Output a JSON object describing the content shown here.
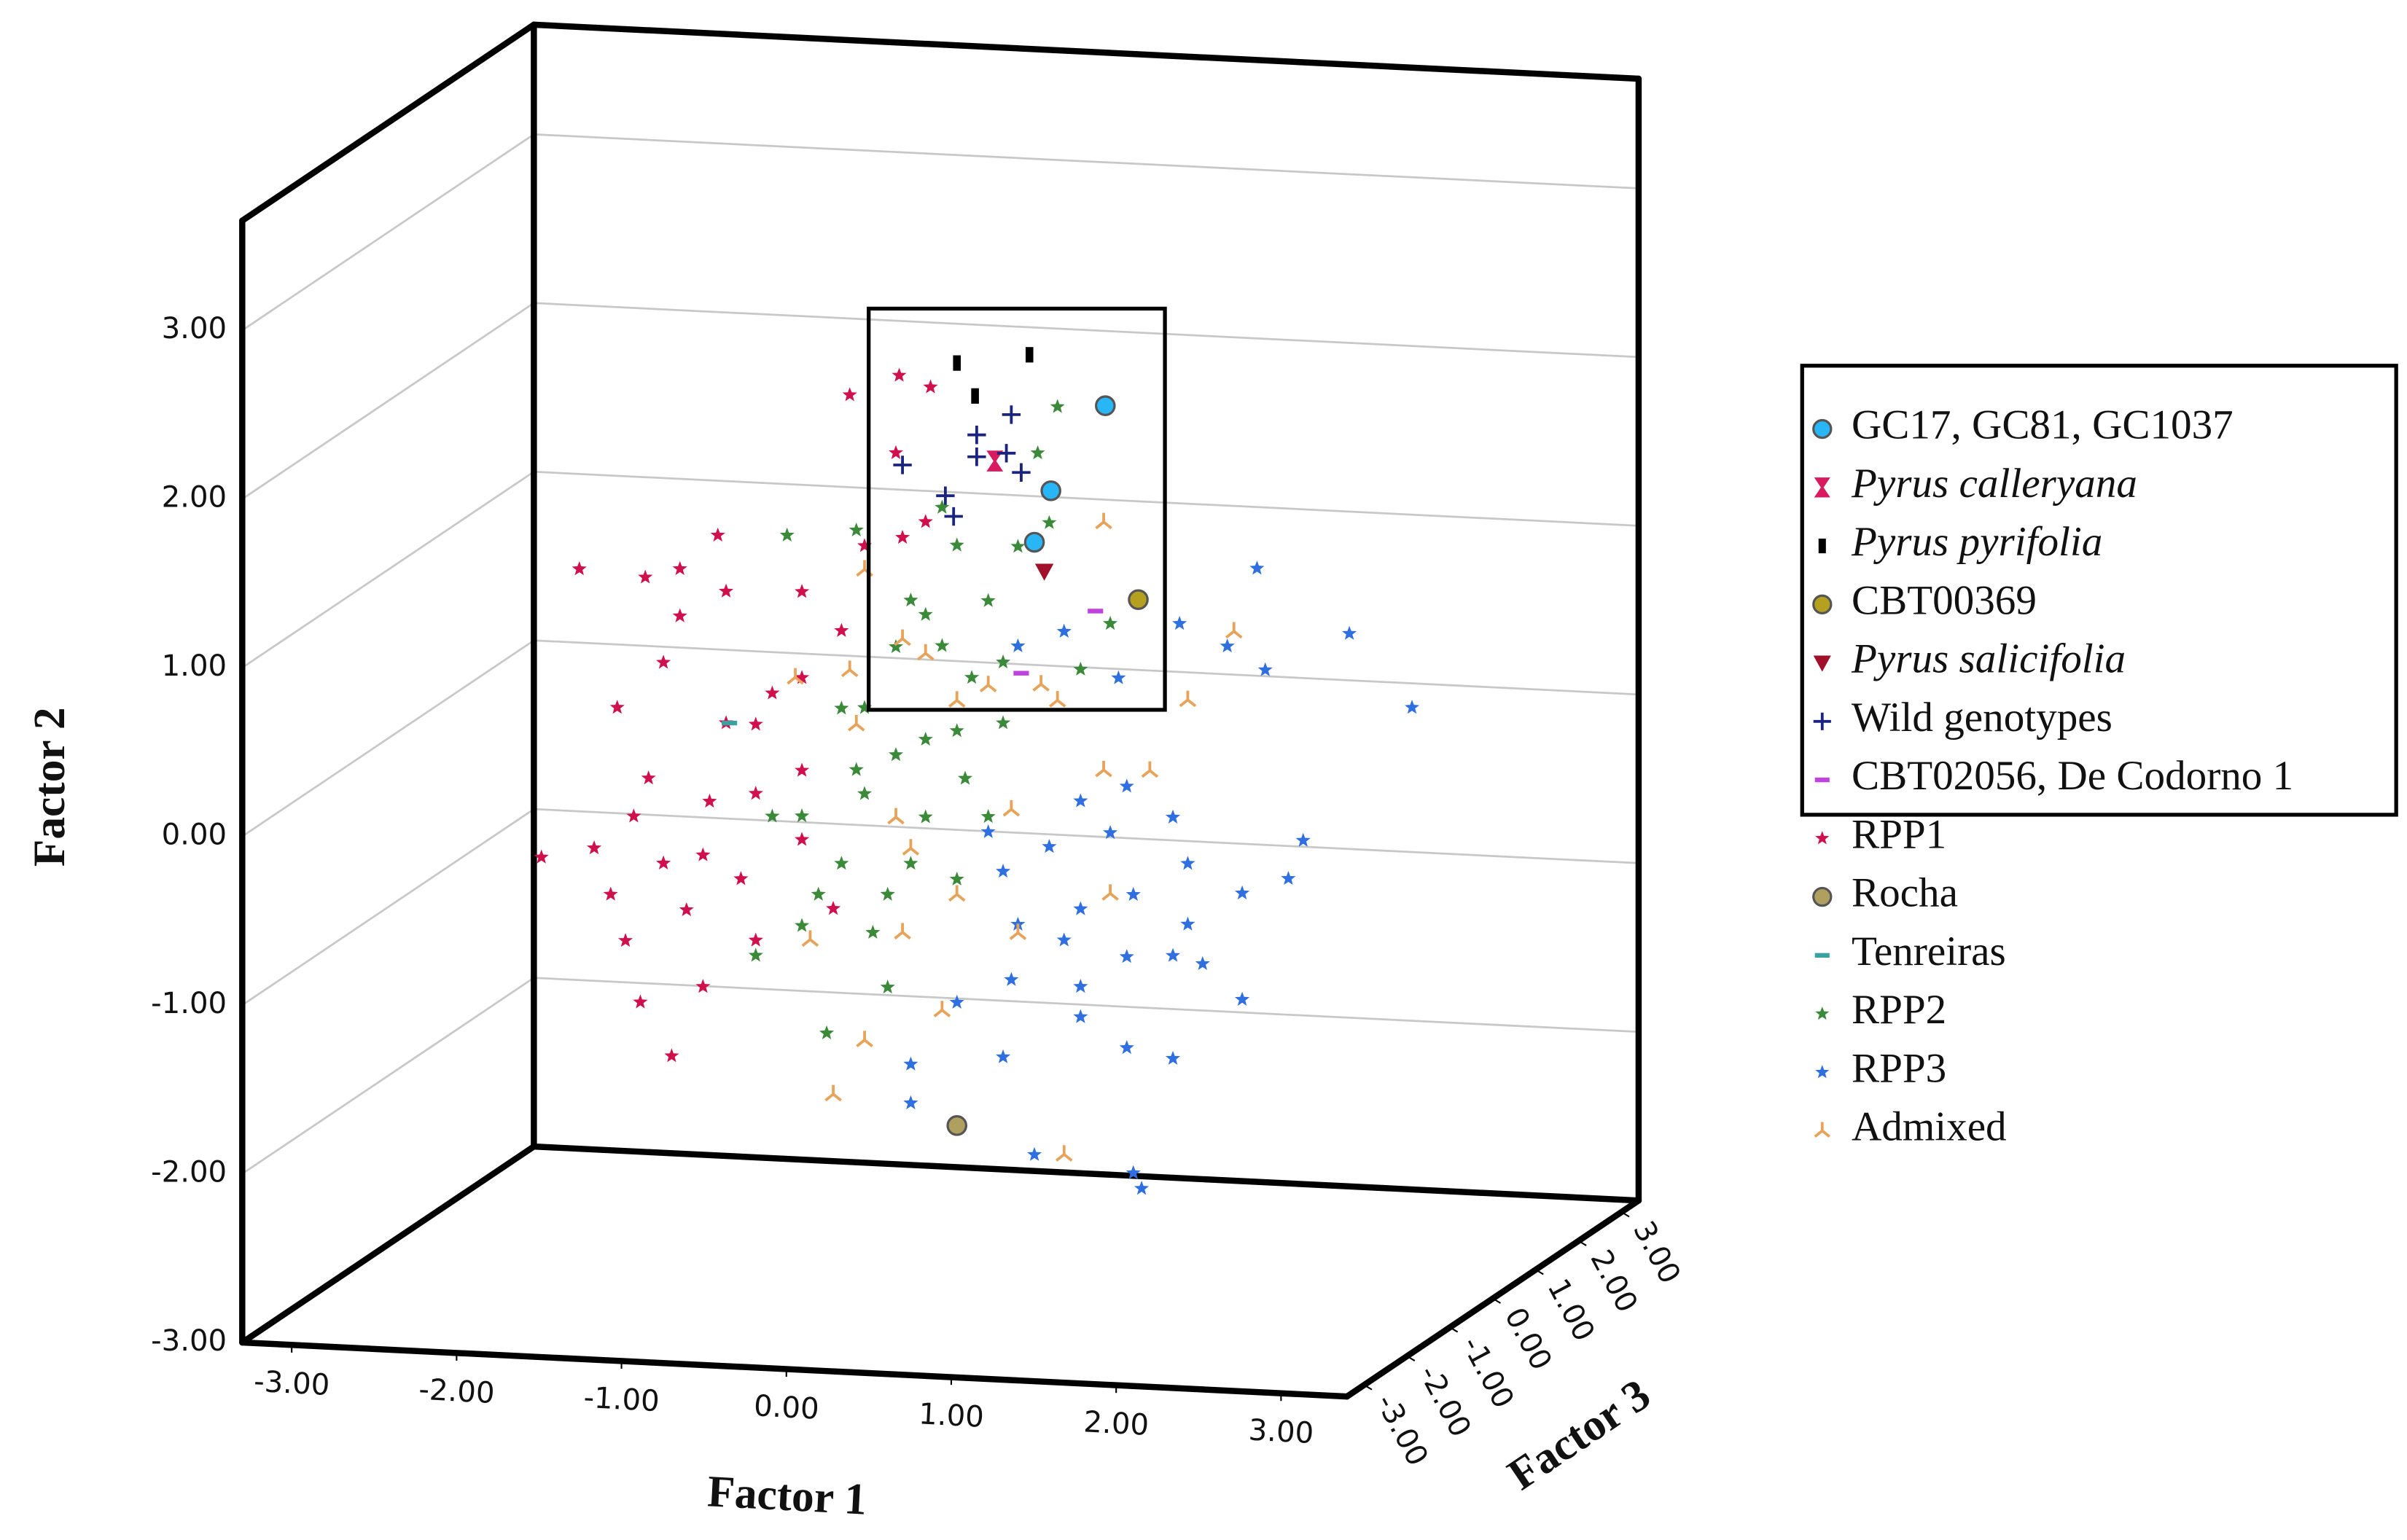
{
  "chart_data": {
    "type": "scatter3d",
    "xlabel": "Factor 1",
    "ylabel": "Factor 2",
    "zlabel": "Factor 3",
    "xlim": [
      -3.3,
      3.4
    ],
    "ylim": [
      -3,
      3.65
    ],
    "zlim": [
      -3.4,
      3.4
    ],
    "xticks": [
      {
        "value": -3,
        "label": "-3.00"
      },
      {
        "value": -2,
        "label": "-2.00"
      },
      {
        "value": -1,
        "label": "-1.00"
      },
      {
        "value": 0,
        "label": "0.00"
      },
      {
        "value": 1,
        "label": "1.00"
      },
      {
        "value": 2,
        "label": "2.00"
      },
      {
        "value": 3,
        "label": "3.00"
      }
    ],
    "yticks": [
      {
        "value": -3,
        "label": "-3.00"
      },
      {
        "value": -2,
        "label": "-2.00"
      },
      {
        "value": -1,
        "label": "-1.00"
      },
      {
        "value": 0,
        "label": "0.00"
      },
      {
        "value": 1,
        "label": "1.00"
      },
      {
        "value": 2,
        "label": "2.00"
      },
      {
        "value": 3,
        "label": "3.00"
      }
    ],
    "zticks": [
      {
        "value": -3,
        "label": "-3.00"
      },
      {
        "value": -2,
        "label": "-2.00"
      },
      {
        "value": -1,
        "label": "-1.00"
      },
      {
        "value": 0,
        "label": "0.00"
      },
      {
        "value": 1,
        "label": "1.00"
      },
      {
        "value": 2,
        "label": "2.00"
      },
      {
        "value": 3,
        "label": "3.00"
      }
    ],
    "grid": true,
    "legend": "right",
    "series": [
      {
        "name": "GC17, GC81, GC1037",
        "color": "#29b6f6",
        "marker": "circle",
        "x": [
          1.05,
          0.72,
          0.62
        ],
        "y": [
          2.18,
          1.66,
          1.35
        ]
      },
      {
        "name": "Pyrus calleryana",
        "color": "#d81b60",
        "marker": "bowtie",
        "style": "italic",
        "x": [
          0.38
        ],
        "y": [
          1.82
        ]
      },
      {
        "name": "Pyrus pyrifolia",
        "color": "#000000",
        "marker": "rect",
        "style": "italic",
        "x": [
          0.15,
          0.59,
          0.26
        ],
        "y": [
          2.39,
          2.46,
          2.2
        ]
      },
      {
        "name": "CBT00369",
        "color": "#b5a020",
        "marker": "circle",
        "x": [
          1.25
        ],
        "y": [
          1.04
        ]
      },
      {
        "name": "Pyrus salicifolia",
        "color": "#a0102a",
        "marker": "triangle-down",
        "style": "italic",
        "x": [
          0.68
        ],
        "y": [
          1.18
        ]
      },
      {
        "name": "Wild genotypes",
        "color": "#1a237e",
        "marker": "plus",
        "x": [
          -0.18,
          0.08,
          0.13,
          0.27,
          0.27,
          0.48,
          0.45,
          0.54
        ],
        "y": [
          1.77,
          1.6,
          1.48,
          1.97,
          1.84,
          2.1,
          1.87,
          1.76
        ]
      },
      {
        "name": "CBT02056, De Codorno 1",
        "color": "#c040e0",
        "marker": "dash",
        "x": [
          0.99,
          0.54
        ],
        "y": [
          0.96,
          0.57
        ]
      },
      {
        "name": "RPP1",
        "color": "#d0104c",
        "marker": "star",
        "x": [
          -2.37,
          -2.05,
          -1.91,
          -1.74,
          -1.53,
          -1.3,
          -1.25,
          -1.63,
          -1.81,
          -1.86,
          -1.77,
          -1.58,
          -1.39,
          -1.07,
          -1.07,
          -0.79,
          -0.55,
          -0.5,
          -0.2,
          -0.01,
          -0.22,
          -0.04,
          -0.18,
          -0.97,
          -1.35,
          -0.79,
          -1.63,
          -1.95,
          -1.16,
          -1.49,
          -1.53,
          -1.25,
          -0.79,
          -1.07,
          -1.39,
          -1.72,
          -2.14,
          -0.79,
          -0.41,
          -0.6
        ],
        "y": [
          -0.66,
          -0.59,
          0.25,
          1.03,
          1.09,
          1.3,
          0.19,
          0.53,
          -0.39,
          -1.13,
          -1.49,
          -1.8,
          -1.38,
          -1.09,
          -0.22,
          0.99,
          0.77,
          2.17,
          2.3,
          2.24,
          1.84,
          1.44,
          1.34,
          0.38,
          -0.28,
          -0.07,
          -0.66,
          -0.86,
          -0.73,
          -0.93,
          0.81,
          0.97,
          0.48,
          0.19,
          -0.6,
          -0.16,
          1.06,
          -0.48,
          1.28,
          -0.88
        ]
      },
      {
        "name": "Rocha",
        "color": "#b0a060",
        "marker": "circle",
        "x": [
          0.15
        ],
        "y": [
          -2.13
        ]
      },
      {
        "name": "Tenreiras",
        "color": "#3aa0a0",
        "marker": "dash",
        "x": [
          -1.23
        ],
        "y": [
          0.19
        ]
      },
      {
        "name": "RPP2",
        "color": "#3a8a3a",
        "marker": "star",
        "x": [
          -0.88,
          -0.46,
          -0.79,
          -0.69,
          -0.27,
          -0.41,
          -0.22,
          -0.04,
          0.15,
          0.24,
          0.43,
          0.06,
          -0.04,
          0.34,
          0.52,
          0.76,
          0.64,
          0.06,
          -0.22,
          -0.55,
          -0.79,
          -0.27,
          -1.07,
          -0.64,
          0.15,
          0.34,
          1.08,
          0.9,
          -0.41,
          -0.04,
          0.15,
          -0.13,
          -0.46,
          -0.97,
          0.43,
          0.71,
          0.2,
          -0.55,
          -0.13,
          -0.36
        ],
        "y": [
          1.32,
          1.37,
          -0.34,
          -0.8,
          -0.78,
          -0.19,
          0.05,
          0.15,
          0.21,
          0.53,
          0.27,
          0.71,
          0.89,
          0.99,
          1.32,
          2.16,
          1.88,
          1.53,
          0.69,
          0.31,
          -0.99,
          -1.33,
          -1.18,
          -1.62,
          -0.67,
          -0.29,
          0.89,
          0.61,
          0.32,
          -0.31,
          1.31,
          0.97,
          -0.05,
          -0.35,
          0.63,
          1.47,
          -0.07,
          -0.61,
          -0.59,
          -1.01
        ]
      },
      {
        "name": "RPP3",
        "color": "#2f6fe0",
        "marker": "star",
        "x": [
          0.52,
          0.8,
          1.13,
          1.5,
          1.79,
          1.97,
          2.02,
          2.53,
          2.91,
          2.25,
          2.16,
          1.88,
          1.55,
          1.46,
          1.18,
          0.9,
          0.71,
          0.43,
          0.34,
          0.9,
          0.8,
          0.52,
          0.9,
          1.18,
          1.46,
          1.64,
          1.88,
          1.22,
          1.08,
          1.55,
          0.48,
          0.15,
          0.43,
          0.9,
          1.18,
          1.46,
          -0.13,
          -0.13,
          0.62,
          1.27,
          1.22
        ],
        "y": [
          0.73,
          0.83,
          0.57,
          0.91,
          0.79,
          1.26,
          0.66,
          0.9,
          0.48,
          -0.34,
          -0.57,
          -0.67,
          -0.51,
          -0.24,
          -0.07,
          -0.17,
          -0.45,
          -0.61,
          -0.38,
          -0.81,
          -1.0,
          -0.92,
          -1.27,
          -1.08,
          -1.06,
          -1.1,
          -1.3,
          -0.71,
          -0.35,
          -0.87,
          -1.25,
          -1.4,
          -1.71,
          -1.45,
          -1.62,
          -1.67,
          -1.78,
          -2.01,
          -2.28,
          -2.45,
          -2.36
        ]
      },
      {
        "name": "Admixed",
        "color": "#e8a35a",
        "marker": "tri",
        "x": [
          -0.83,
          -0.5,
          -0.41,
          -0.18,
          0.15,
          0.34,
          0.66,
          0.76,
          1.04,
          1.55,
          1.83,
          1.32,
          1.04,
          0.48,
          -0.13,
          0.15,
          0.52,
          -0.18,
          0.06,
          -0.41,
          -0.6,
          0.8,
          1.08,
          -0.46,
          -0.04,
          -0.22,
          -0.74
        ],
        "y": [
          0.48,
          0.54,
          1.14,
          0.74,
          0.39,
          0.49,
          0.51,
          0.42,
          1.49,
          0.46,
          0.88,
          0.03,
          0.02,
          -0.24,
          -0.5,
          -0.76,
          -0.97,
          -1.0,
          -1.45,
          -1.65,
          -1.98,
          -2.27,
          -0.71,
          0.22,
          0.66,
          -0.32,
          -1.07
        ]
      }
    ]
  }
}
